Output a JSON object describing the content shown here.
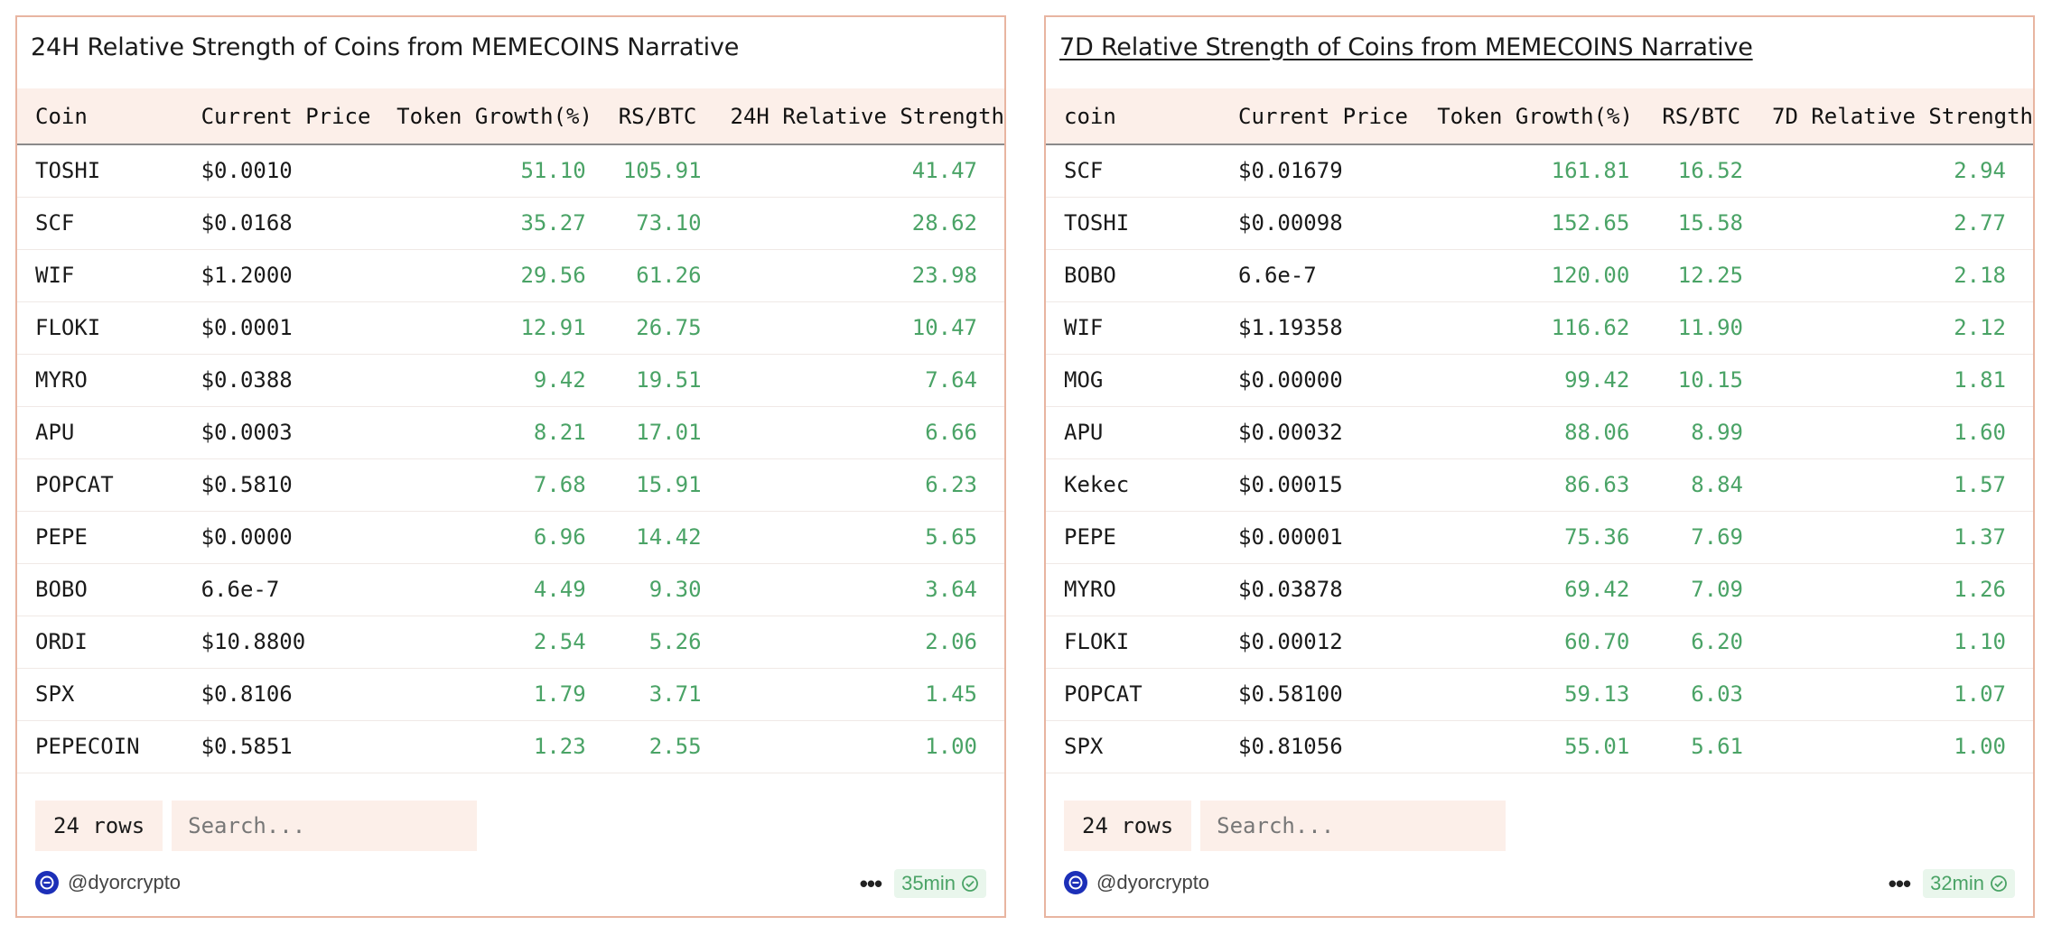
{
  "panels": [
    {
      "title": "24H Relative Strength of Coins from MEMECOINS Narrative",
      "columns": [
        "Coin",
        "Current Price",
        "Token Growth(%)",
        "RS/BTC",
        "24H Relative Strength"
      ],
      "rows": [
        [
          "TOSHI",
          "$0.0010",
          "51.10",
          "105.91",
          "41.47"
        ],
        [
          "SCF",
          "$0.0168",
          "35.27",
          "73.10",
          "28.62"
        ],
        [
          "WIF",
          "$1.2000",
          "29.56",
          "61.26",
          "23.98"
        ],
        [
          "FLOKI",
          "$0.0001",
          "12.91",
          "26.75",
          "10.47"
        ],
        [
          "MYRO",
          "$0.0388",
          "9.42",
          "19.51",
          "7.64"
        ],
        [
          "APU",
          "$0.0003",
          "8.21",
          "17.01",
          "6.66"
        ],
        [
          "POPCAT",
          "$0.5810",
          "7.68",
          "15.91",
          "6.23"
        ],
        [
          "PEPE",
          "$0.0000",
          "6.96",
          "14.42",
          "5.65"
        ],
        [
          "BOBO",
          "6.6e-7",
          "4.49",
          "9.30",
          "3.64"
        ],
        [
          "ORDI",
          "$10.8800",
          "2.54",
          "5.26",
          "2.06"
        ],
        [
          "SPX",
          "$0.8106",
          "1.79",
          "3.71",
          "1.45"
        ],
        [
          "PEPECOIN",
          "$0.5851",
          "1.23",
          "2.55",
          "1.00"
        ]
      ],
      "rows_label": "24 rows",
      "search_placeholder": "Search...",
      "author": "@dyorcrypto",
      "more_label": "•••",
      "time_label": "35min"
    },
    {
      "title": "7D Relative Strength of Coins from MEMECOINS Narrative",
      "columns": [
        "coin",
        "Current Price",
        "Token Growth(%)",
        "RS/BTC",
        "7D Relative Strength"
      ],
      "rows": [
        [
          "SCF",
          "$0.01679",
          "161.81",
          "16.52",
          "2.94"
        ],
        [
          "TOSHI",
          "$0.00098",
          "152.65",
          "15.58",
          "2.77"
        ],
        [
          "BOBO",
          "6.6e-7",
          "120.00",
          "12.25",
          "2.18"
        ],
        [
          "WIF",
          "$1.19358",
          "116.62",
          "11.90",
          "2.12"
        ],
        [
          "MOG",
          "$0.00000",
          "99.42",
          "10.15",
          "1.81"
        ],
        [
          "APU",
          "$0.00032",
          "88.06",
          "8.99",
          "1.60"
        ],
        [
          "Kekec",
          "$0.00015",
          "86.63",
          "8.84",
          "1.57"
        ],
        [
          "PEPE",
          "$0.00001",
          "75.36",
          "7.69",
          "1.37"
        ],
        [
          "MYRO",
          "$0.03878",
          "69.42",
          "7.09",
          "1.26"
        ],
        [
          "FLOKI",
          "$0.00012",
          "60.70",
          "6.20",
          "1.10"
        ],
        [
          "POPCAT",
          "$0.58100",
          "59.13",
          "6.03",
          "1.07"
        ],
        [
          "SPX",
          "$0.81056",
          "55.01",
          "5.61",
          "1.00"
        ]
      ],
      "rows_label": "24 rows",
      "search_placeholder": "Search...",
      "author": "@dyorcrypto",
      "more_label": "•••",
      "time_label": "32min"
    }
  ],
  "colors": {
    "panel_border": "#e8b5a1",
    "header_bg": "#fcefe9",
    "positive": "#4aa366",
    "avatar": "#1c2fb8"
  },
  "icons": [
    "author-avatar-icon",
    "more-options-icon",
    "check-circle-icon"
  ]
}
